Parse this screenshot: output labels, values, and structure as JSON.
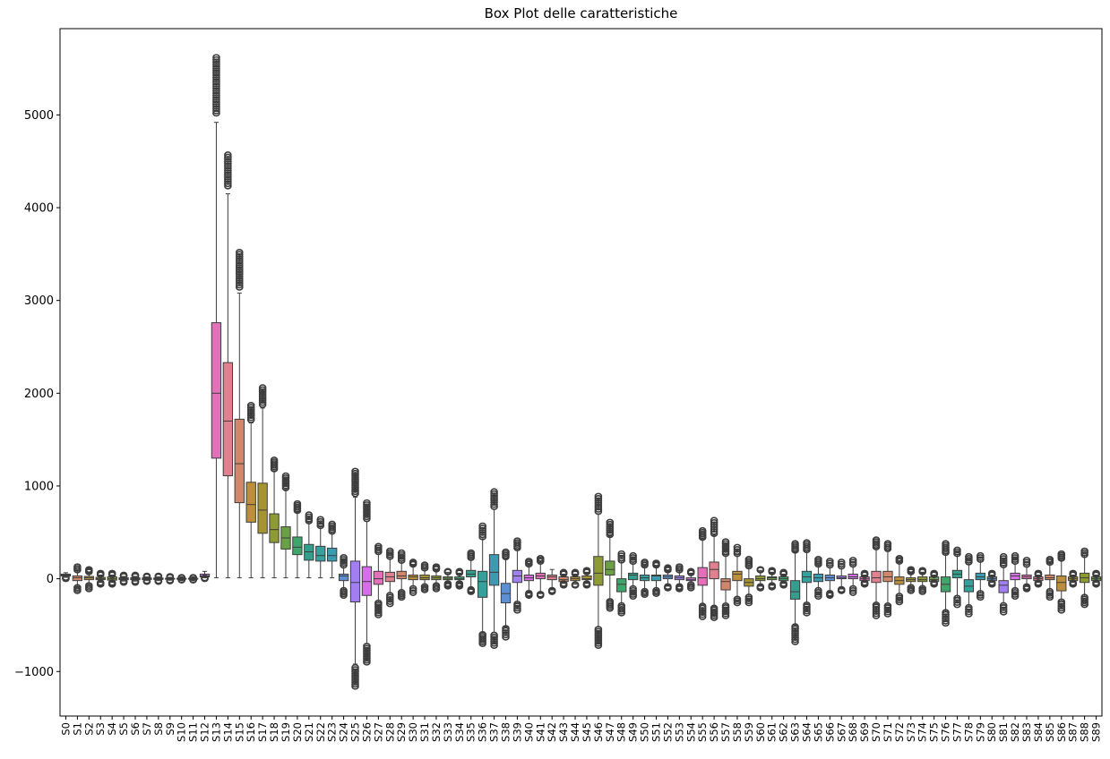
{
  "chart_data": {
    "type": "box",
    "title": "Box Plot delle caratteristiche",
    "xlabel": "",
    "ylabel": "",
    "ylim": [
      -1480,
      5930
    ],
    "yticks": [
      -1000,
      0,
      1000,
      2000,
      3000,
      4000,
      5000
    ],
    "ytick_labels": [
      "−1000",
      "0",
      "1000",
      "2000",
      "3000",
      "4000",
      "5000"
    ],
    "categories": [
      "S0",
      "S1",
      "S2",
      "S3",
      "S4",
      "S5",
      "S6",
      "S7",
      "S8",
      "S9",
      "S10",
      "S11",
      "S12",
      "S13",
      "S14",
      "S15",
      "S16",
      "S17",
      "S18",
      "S19",
      "S20",
      "S21",
      "S22",
      "S23",
      "S24",
      "S25",
      "S26",
      "S27",
      "S28",
      "S29",
      "S30",
      "S31",
      "S32",
      "S33",
      "S34",
      "S35",
      "S36",
      "S37",
      "S38",
      "S39",
      "S40",
      "S41",
      "S42",
      "S43",
      "S44",
      "S45",
      "S46",
      "S47",
      "S48",
      "S49",
      "S50",
      "S51",
      "S52",
      "S53",
      "S54",
      "S55",
      "S56",
      "S57",
      "S58",
      "S59",
      "S60",
      "S61",
      "S62",
      "S63",
      "S64",
      "S65",
      "S66",
      "S67",
      "S68",
      "S69",
      "S70",
      "S71",
      "S72",
      "S73",
      "S74",
      "S75",
      "S76",
      "S77",
      "S78",
      "S79",
      "S80",
      "S81",
      "S82",
      "S83",
      "S84",
      "S85",
      "S86",
      "S87",
      "S88",
      "S89"
    ],
    "boxes": [
      [
        15,
        30,
        40,
        50,
        65,
        0,
        0
      ],
      [
        -90,
        -20,
        10,
        30,
        90,
        -130,
        130
      ],
      [
        -70,
        -10,
        10,
        25,
        70,
        -110,
        100
      ],
      [
        -40,
        -10,
        0,
        15,
        40,
        -60,
        60
      ],
      [
        -40,
        -15,
        0,
        20,
        40,
        -60,
        60
      ],
      [
        -25,
        -10,
        0,
        10,
        25,
        -40,
        40
      ],
      [
        -25,
        -10,
        0,
        10,
        25,
        -40,
        40
      ],
      [
        -20,
        -8,
        0,
        8,
        20,
        -30,
        30
      ],
      [
        -20,
        -8,
        0,
        8,
        20,
        -30,
        30
      ],
      [
        -15,
        -5,
        0,
        5,
        15,
        -25,
        25
      ],
      [
        -10,
        -5,
        0,
        5,
        10,
        -15,
        15
      ],
      [
        -10,
        -5,
        0,
        5,
        10,
        -15,
        15
      ],
      [
        10,
        20,
        30,
        50,
        80,
        0,
        0
      ],
      [
        10,
        1300,
        2000,
        2760,
        4920,
        4920,
        5620
      ],
      [
        10,
        1110,
        1700,
        2330,
        4150,
        4150,
        4570
      ],
      [
        10,
        820,
        1240,
        1720,
        3080,
        3080,
        3520
      ],
      [
        10,
        610,
        800,
        1040,
        1680,
        1680,
        1870
      ],
      [
        10,
        490,
        740,
        1030,
        1840,
        1840,
        2060
      ],
      [
        10,
        390,
        530,
        700,
        1160,
        1160,
        1280
      ],
      [
        10,
        320,
        440,
        560,
        960,
        960,
        1110
      ],
      [
        10,
        260,
        340,
        450,
        720,
        720,
        810
      ],
      [
        10,
        200,
        290,
        370,
        610,
        610,
        690
      ],
      [
        10,
        190,
        250,
        350,
        560,
        560,
        640
      ],
      [
        10,
        190,
        250,
        330,
        500,
        500,
        590
      ],
      [
        -120,
        -20,
        30,
        50,
        140,
        -180,
        230
      ],
      [
        -920,
        -250,
        -40,
        190,
        880,
        -1160,
        1160
      ],
      [
        -700,
        -180,
        -30,
        130,
        620,
        -900,
        820
      ],
      [
        -250,
        -60,
        0,
        80,
        280,
        -390,
        350
      ],
      [
        -170,
        -30,
        20,
        70,
        230,
        -270,
        300
      ],
      [
        -140,
        0,
        30,
        80,
        190,
        -200,
        280
      ],
      [
        -100,
        -10,
        20,
        40,
        150,
        -150,
        180
      ],
      [
        -80,
        -10,
        10,
        40,
        110,
        -120,
        150
      ],
      [
        -70,
        -10,
        10,
        30,
        100,
        -110,
        130
      ],
      [
        -50,
        -10,
        5,
        20,
        70,
        -80,
        80
      ],
      [
        -50,
        -10,
        0,
        20,
        60,
        -80,
        80
      ],
      [
        -110,
        20,
        50,
        90,
        220,
        -140,
        280
      ],
      [
        -580,
        -200,
        -30,
        80,
        430,
        -700,
        570
      ],
      [
        -580,
        -70,
        70,
        260,
        750,
        -720,
        940
      ],
      [
        -520,
        -260,
        -160,
        -50,
        220,
        -630,
        290
      ],
      [
        -260,
        -40,
        30,
        90,
        320,
        -340,
        410
      ],
      [
        -150,
        -20,
        10,
        40,
        150,
        -180,
        190
      ],
      [
        -160,
        0,
        30,
        60,
        180,
        -180,
        220
      ],
      [
        -120,
        -10,
        20,
        40,
        100,
        -140,
        100
      ],
      [
        -50,
        -30,
        -10,
        20,
        50,
        -70,
        70
      ],
      [
        -60,
        -20,
        0,
        20,
        50,
        -70,
        70
      ],
      [
        -50,
        -10,
        0,
        30,
        70,
        -70,
        90
      ],
      [
        -520,
        -70,
        60,
        240,
        700,
        -720,
        890
      ],
      [
        -230,
        40,
        100,
        190,
        460,
        -320,
        610
      ],
      [
        -280,
        -140,
        -60,
        0,
        190,
        -370,
        270
      ],
      [
        -100,
        -10,
        40,
        60,
        180,
        -190,
        250
      ],
      [
        -130,
        -20,
        10,
        40,
        140,
        -170,
        180
      ],
      [
        -120,
        -20,
        30,
        40,
        140,
        -160,
        170
      ],
      [
        -80,
        0,
        20,
        40,
        90,
        -100,
        120
      ],
      [
        -80,
        -10,
        10,
        30,
        90,
        -110,
        130
      ],
      [
        -60,
        -20,
        -10,
        10,
        60,
        -100,
        80
      ],
      [
        -280,
        -70,
        10,
        120,
        430,
        -410,
        520
      ],
      [
        -300,
        0,
        100,
        180,
        470,
        -420,
        630
      ],
      [
        -280,
        -120,
        -30,
        0,
        260,
        -400,
        400
      ],
      [
        -210,
        -20,
        50,
        80,
        260,
        -260,
        340
      ],
      [
        -190,
        -80,
        -40,
        0,
        130,
        -260,
        210
      ],
      [
        -80,
        -20,
        0,
        30,
        90,
        -100,
        100
      ],
      [
        -70,
        -10,
        10,
        20,
        70,
        -90,
        90
      ],
      [
        -50,
        -20,
        0,
        20,
        50,
        -70,
        70
      ],
      [
        -500,
        -220,
        -140,
        -20,
        290,
        -680,
        380
      ],
      [
        -270,
        -40,
        20,
        80,
        300,
        -370,
        390
      ],
      [
        -120,
        -30,
        10,
        50,
        150,
        -190,
        210
      ],
      [
        -150,
        -20,
        10,
        40,
        140,
        -180,
        190
      ],
      [
        -110,
        0,
        10,
        30,
        130,
        -130,
        180
      ],
      [
        -100,
        0,
        20,
        50,
        150,
        -150,
        200
      ],
      [
        -40,
        -20,
        0,
        20,
        40,
        -60,
        60
      ],
      [
        -270,
        -40,
        10,
        80,
        330,
        -400,
        420
      ],
      [
        -280,
        -30,
        20,
        80,
        310,
        -380,
        380
      ],
      [
        -180,
        -60,
        -20,
        20,
        180,
        -250,
        220
      ],
      [
        -90,
        -30,
        -10,
        10,
        70,
        -130,
        100
      ],
      [
        -100,
        -30,
        -10,
        20,
        70,
        -140,
        90
      ],
      [
        -40,
        -30,
        -10,
        20,
        40,
        -60,
        60
      ],
      [
        -350,
        -140,
        -60,
        20,
        270,
        -480,
        380
      ],
      [
        -200,
        10,
        50,
        90,
        260,
        -280,
        310
      ],
      [
        -300,
        -140,
        -80,
        -10,
        170,
        -380,
        240
      ],
      [
        -150,
        -10,
        20,
        60,
        200,
        -200,
        250
      ],
      [
        -40,
        -20,
        0,
        20,
        40,
        -60,
        60
      ],
      [
        -280,
        -150,
        -70,
        -20,
        140,
        -360,
        240
      ],
      [
        -120,
        -10,
        30,
        60,
        180,
        -190,
        250
      ],
      [
        -80,
        0,
        20,
        40,
        150,
        -110,
        200
      ],
      [
        -40,
        -20,
        0,
        20,
        40,
        -60,
        60
      ],
      [
        -130,
        -10,
        10,
        40,
        170,
        -200,
        210
      ],
      [
        -240,
        -130,
        -40,
        30,
        210,
        -340,
        270
      ],
      [
        -40,
        -20,
        0,
        20,
        40,
        -60,
        60
      ],
      [
        -190,
        -40,
        10,
        60,
        250,
        -280,
        300
      ],
      [
        -40,
        -20,
        0,
        20,
        40,
        -60,
        60
      ]
    ],
    "box_fields": [
      "whisker_low",
      "q1",
      "median",
      "q3",
      "whisker_high",
      "flier_min",
      "flier_max"
    ],
    "palette": [
      "#e1808f",
      "#d3876a",
      "#bd8f3c",
      "#a69331",
      "#8e9a33",
      "#6ba047",
      "#3ea66a",
      "#349e8d",
      "#36a09c",
      "#3a9bb1",
      "#5d8fd3",
      "#a17ff0",
      "#d46fe6",
      "#e570b9"
    ],
    "flier_color": "#3d3d3d",
    "line_color": "#3d3d3d"
  }
}
